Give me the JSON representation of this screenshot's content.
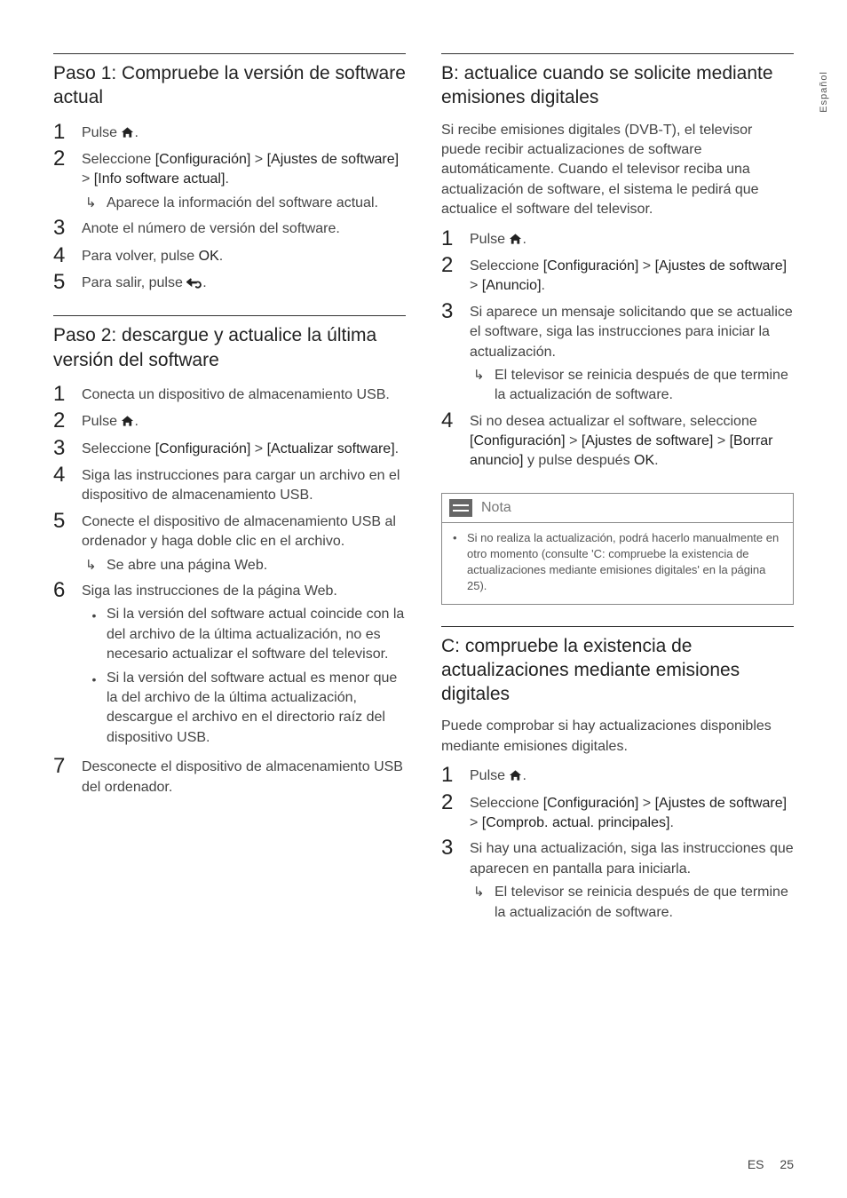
{
  "sideTab": "Español",
  "footer": {
    "lang": "ES",
    "page": "25"
  },
  "left": {
    "s1": {
      "title": "Paso 1: Compruebe la versión de software actual",
      "steps": [
        {
          "n": "1",
          "pre": "Pulse ",
          "icon": "home",
          "post": "."
        },
        {
          "n": "2",
          "pre": "Seleccione ",
          "b1": "[Configuración]",
          "mid1": " > ",
          "b2": "[Ajustes de software]",
          "mid2": " > ",
          "b3": "[Info software actual]",
          "post": ".",
          "sub": "Aparece la información del software actual."
        },
        {
          "n": "3",
          "text": "Anote el número de versión del software."
        },
        {
          "n": "4",
          "pre": "Para volver, pulse ",
          "b1": "OK",
          "post": "."
        },
        {
          "n": "5",
          "pre": "Para salir, pulse ",
          "icon": "back",
          "post": "."
        }
      ]
    },
    "s2": {
      "title": "Paso 2: descargue y actualice la última versión del software",
      "steps": [
        {
          "n": "1",
          "text": "Conecta un dispositivo de almacenamiento USB."
        },
        {
          "n": "2",
          "pre": "Pulse ",
          "icon": "home",
          "post": "."
        },
        {
          "n": "3",
          "pre": "Seleccione ",
          "b1": "[Configuración]",
          "mid1": " > ",
          "b2": "[Actualizar software]",
          "post": "."
        },
        {
          "n": "4",
          "text": "Siga las instrucciones para cargar un archivo en el dispositivo de almacenamiento USB."
        },
        {
          "n": "5",
          "text": "Conecte el dispositivo de almacenamiento USB al ordenador y haga doble clic en el archivo.",
          "sub": "Se abre una página Web."
        },
        {
          "n": "6",
          "text": "Siga las instrucciones de la página Web.",
          "bullets": [
            "Si la versión del software actual coincide con la del archivo de la última actualización, no es necesario actualizar el software del televisor.",
            "Si la versión del software actual es menor que la del archivo de la última actualización, descargue el archivo en el directorio raíz del dispositivo USB."
          ]
        },
        {
          "n": "7",
          "text": "Desconecte el dispositivo de almacenamiento USB del ordenador."
        }
      ]
    }
  },
  "right": {
    "sB": {
      "title": "B: actualice cuando se solicite mediante emisiones digitales",
      "intro": "Si recibe emisiones digitales (DVB-T), el televisor puede recibir actualizaciones de software automáticamente. Cuando el televisor reciba una actualización de software, el sistema le pedirá que actualice el software del televisor.",
      "steps": [
        {
          "n": "1",
          "pre": "Pulse ",
          "icon": "home",
          "post": "."
        },
        {
          "n": "2",
          "pre": "Seleccione ",
          "b1": "[Configuración]",
          "mid1": " > ",
          "b2": "[Ajustes de software]",
          "mid2": " > ",
          "b3": "[Anuncio]",
          "post": "."
        },
        {
          "n": "3",
          "text": "Si aparece un mensaje solicitando que se actualice el software, siga las instrucciones para iniciar la actualización.",
          "sub": "El televisor se reinicia después de que termine la actualización de software."
        },
        {
          "n": "4",
          "pre": "Si no desea actualizar el software, seleccione ",
          "b1": "[Configuración]",
          "mid1": " > ",
          "b2": "[Ajustes de software]",
          "mid2": " > ",
          "b3": "[Borrar anuncio]",
          "post2": " y pulse después ",
          "b4": "OK",
          "post": "."
        }
      ],
      "note": {
        "label": "Nota",
        "text": "Si no realiza la actualización, podrá hacerlo manualmente en otro momento (consulte 'C: compruebe la existencia de actualizaciones mediante emisiones digitales' en la página 25)."
      }
    },
    "sC": {
      "title": "C: compruebe la existencia de actualizaciones mediante emisiones digitales",
      "intro": "Puede comprobar si hay actualizaciones disponibles mediante emisiones digitales.",
      "steps": [
        {
          "n": "1",
          "pre": "Pulse ",
          "icon": "home",
          "post": "."
        },
        {
          "n": "2",
          "pre": "Seleccione ",
          "b1": "[Configuración]",
          "mid1": " > ",
          "b2": "[Ajustes de software]",
          "mid2": " > ",
          "b3": "[Comprob. actual. principales]",
          "post": "."
        },
        {
          "n": "3",
          "text": "Si hay una actualización, siga las instrucciones que aparecen en pantalla para iniciarla.",
          "sub": "El televisor se reinicia después de que termine la actualización de software."
        }
      ]
    }
  }
}
